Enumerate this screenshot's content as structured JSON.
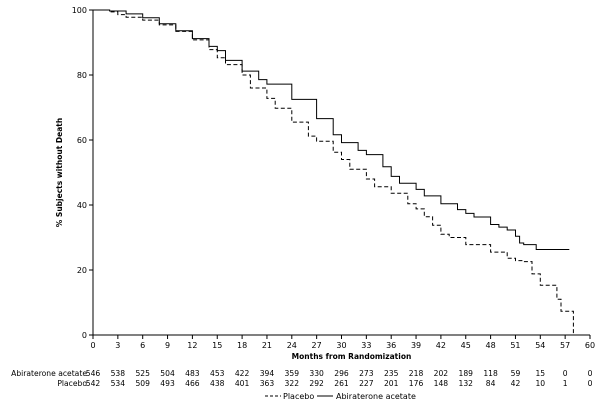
{
  "chart_data": {
    "type": "line",
    "title": "",
    "xlabel": "Months from Randomization",
    "ylabel": "% Subjects without Death",
    "xlim": [
      0,
      60
    ],
    "ylim": [
      0,
      100
    ],
    "x_ticks": [
      "0",
      "3",
      "6",
      "9",
      "12",
      "15",
      "18",
      "21",
      "24",
      "27",
      "30",
      "33",
      "36",
      "39",
      "42",
      "45",
      "48",
      "51",
      "54",
      "57",
      "60"
    ],
    "y_ticks": [
      "0",
      "20",
      "40",
      "60",
      "80",
      "100"
    ],
    "grid": false,
    "legend_position": "bottom-center",
    "series": [
      {
        "name": "Abiraterone acetate",
        "style": "solid",
        "color": "#000000",
        "points": [
          [
            0,
            100
          ],
          [
            2,
            99.7
          ],
          [
            4,
            98.8
          ],
          [
            6,
            97.6
          ],
          [
            8,
            95.8
          ],
          [
            10,
            93.6
          ],
          [
            12,
            91.2
          ],
          [
            14,
            88.8
          ],
          [
            15,
            87.5
          ],
          [
            16,
            84.5
          ],
          [
            18,
            81.2
          ],
          [
            20,
            78.6
          ],
          [
            21,
            77.2
          ],
          [
            24,
            72.5
          ],
          [
            27,
            66.6
          ],
          [
            29,
            61.6
          ],
          [
            30,
            59.2
          ],
          [
            32,
            56.8
          ],
          [
            33,
            55.5
          ],
          [
            35,
            51.8
          ],
          [
            36,
            48.8
          ],
          [
            37,
            46.7
          ],
          [
            39,
            44.8
          ],
          [
            40,
            42.8
          ],
          [
            42,
            40.4
          ],
          [
            44,
            38.6
          ],
          [
            45,
            37.4
          ],
          [
            46,
            36.3
          ],
          [
            48,
            34.0
          ],
          [
            49,
            33.2
          ],
          [
            50,
            32.3
          ],
          [
            51,
            30.4
          ],
          [
            51.5,
            28.3
          ],
          [
            52,
            27.8
          ],
          [
            53,
            27.8
          ],
          [
            53.5,
            26.3
          ],
          [
            56,
            26.3
          ],
          [
            57.5,
            26.3
          ]
        ]
      },
      {
        "name": "Placebo",
        "style": "dashed",
        "color": "#000000",
        "points": [
          [
            0,
            100
          ],
          [
            2,
            99.4
          ],
          [
            3,
            98.6
          ],
          [
            4,
            97.8
          ],
          [
            6,
            96.9
          ],
          [
            8,
            95.4
          ],
          [
            10,
            93.4
          ],
          [
            12,
            90.8
          ],
          [
            14,
            87.8
          ],
          [
            15,
            85.3
          ],
          [
            16,
            83.2
          ],
          [
            18,
            80.0
          ],
          [
            19,
            76.0
          ],
          [
            21,
            72.8
          ],
          [
            22,
            69.8
          ],
          [
            24,
            65.5
          ],
          [
            26,
            61.2
          ],
          [
            27,
            59.6
          ],
          [
            29,
            56.2
          ],
          [
            30,
            54.0
          ],
          [
            31,
            51.0
          ],
          [
            33,
            48.0
          ],
          [
            34,
            45.6
          ],
          [
            36,
            43.6
          ],
          [
            38,
            40.4
          ],
          [
            39,
            38.8
          ],
          [
            40,
            36.4
          ],
          [
            41,
            33.8
          ],
          [
            42,
            31.0
          ],
          [
            43,
            30.0
          ],
          [
            45,
            27.8
          ],
          [
            48,
            25.5
          ],
          [
            50,
            23.6
          ],
          [
            51,
            22.9
          ],
          [
            52,
            22.6
          ],
          [
            53,
            18.8
          ],
          [
            54,
            15.3
          ],
          [
            55,
            15.3
          ],
          [
            56,
            11.0
          ],
          [
            56.5,
            7.3
          ],
          [
            57.5,
            7.3
          ],
          [
            58,
            0
          ]
        ]
      }
    ],
    "risk_table": {
      "rows": [
        {
          "label": "Abiraterone acetate",
          "values": [
            "546",
            "538",
            "525",
            "504",
            "483",
            "453",
            "422",
            "394",
            "359",
            "330",
            "296",
            "273",
            "235",
            "218",
            "202",
            "189",
            "118",
            "59",
            "15",
            "0",
            "0"
          ]
        },
        {
          "label": "Placebo",
          "values": [
            "542",
            "534",
            "509",
            "493",
            "466",
            "438",
            "401",
            "363",
            "322",
            "292",
            "261",
            "227",
            "201",
            "176",
            "148",
            "132",
            "84",
            "42",
            "10",
            "1",
            "0"
          ]
        }
      ]
    }
  }
}
